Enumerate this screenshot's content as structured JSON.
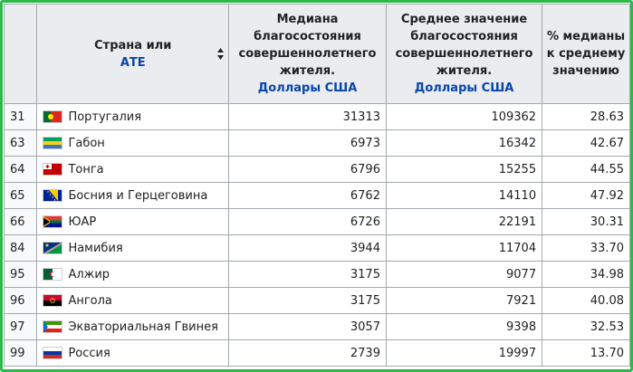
{
  "table": {
    "headers": {
      "country_line1": "Страна или",
      "country_line2": "АТЕ",
      "median_title": "Медиана благосостояния совершеннолетнего жителя.",
      "median_unit": "Доллары США",
      "mean_title": "Среднее значение благосостояния совершеннолетнего жителя.",
      "mean_unit": "Доллары США",
      "ratio_title": "% медианы к среднему значению"
    },
    "rows": [
      {
        "rank": "31",
        "flag": "portugal-flag-icon",
        "country": "Португалия",
        "median": "31313",
        "mean": "109362",
        "ratio": "28.63"
      },
      {
        "rank": "63",
        "flag": "gabon-flag-icon",
        "country": "Габон",
        "median": "6973",
        "mean": "16342",
        "ratio": "42.67"
      },
      {
        "rank": "64",
        "flag": "tonga-flag-icon",
        "country": "Тонга",
        "median": "6796",
        "mean": "15255",
        "ratio": "44.55"
      },
      {
        "rank": "65",
        "flag": "bosnia-flag-icon",
        "country": "Босния и Герцеговина",
        "median": "6762",
        "mean": "14110",
        "ratio": "47.92"
      },
      {
        "rank": "66",
        "flag": "south-africa-flag-icon",
        "country": "ЮАР",
        "median": "6726",
        "mean": "22191",
        "ratio": "30.31"
      },
      {
        "rank": "84",
        "flag": "namibia-flag-icon",
        "country": "Намибия",
        "median": "3944",
        "mean": "11704",
        "ratio": "33.70"
      },
      {
        "rank": "95",
        "flag": "algeria-flag-icon",
        "country": "Алжир",
        "median": "3175",
        "mean": "9077",
        "ratio": "34.98"
      },
      {
        "rank": "96",
        "flag": "angola-flag-icon",
        "country": "Ангола",
        "median": "3175",
        "mean": "7921",
        "ratio": "40.08"
      },
      {
        "rank": "97",
        "flag": "equatorial-guinea-flag-icon",
        "country": "Экваториальная Гвинея",
        "median": "3057",
        "mean": "9398",
        "ratio": "32.53"
      },
      {
        "rank": "99",
        "flag": "russia-flag-icon",
        "country": "Россия",
        "median": "2739",
        "mean": "19997",
        "ratio": "13.70"
      }
    ]
  },
  "colors": {
    "frame": "#2fb94a",
    "header_bg": "#eaecf0",
    "link": "#0645ad",
    "border": "#a2a9b1"
  }
}
